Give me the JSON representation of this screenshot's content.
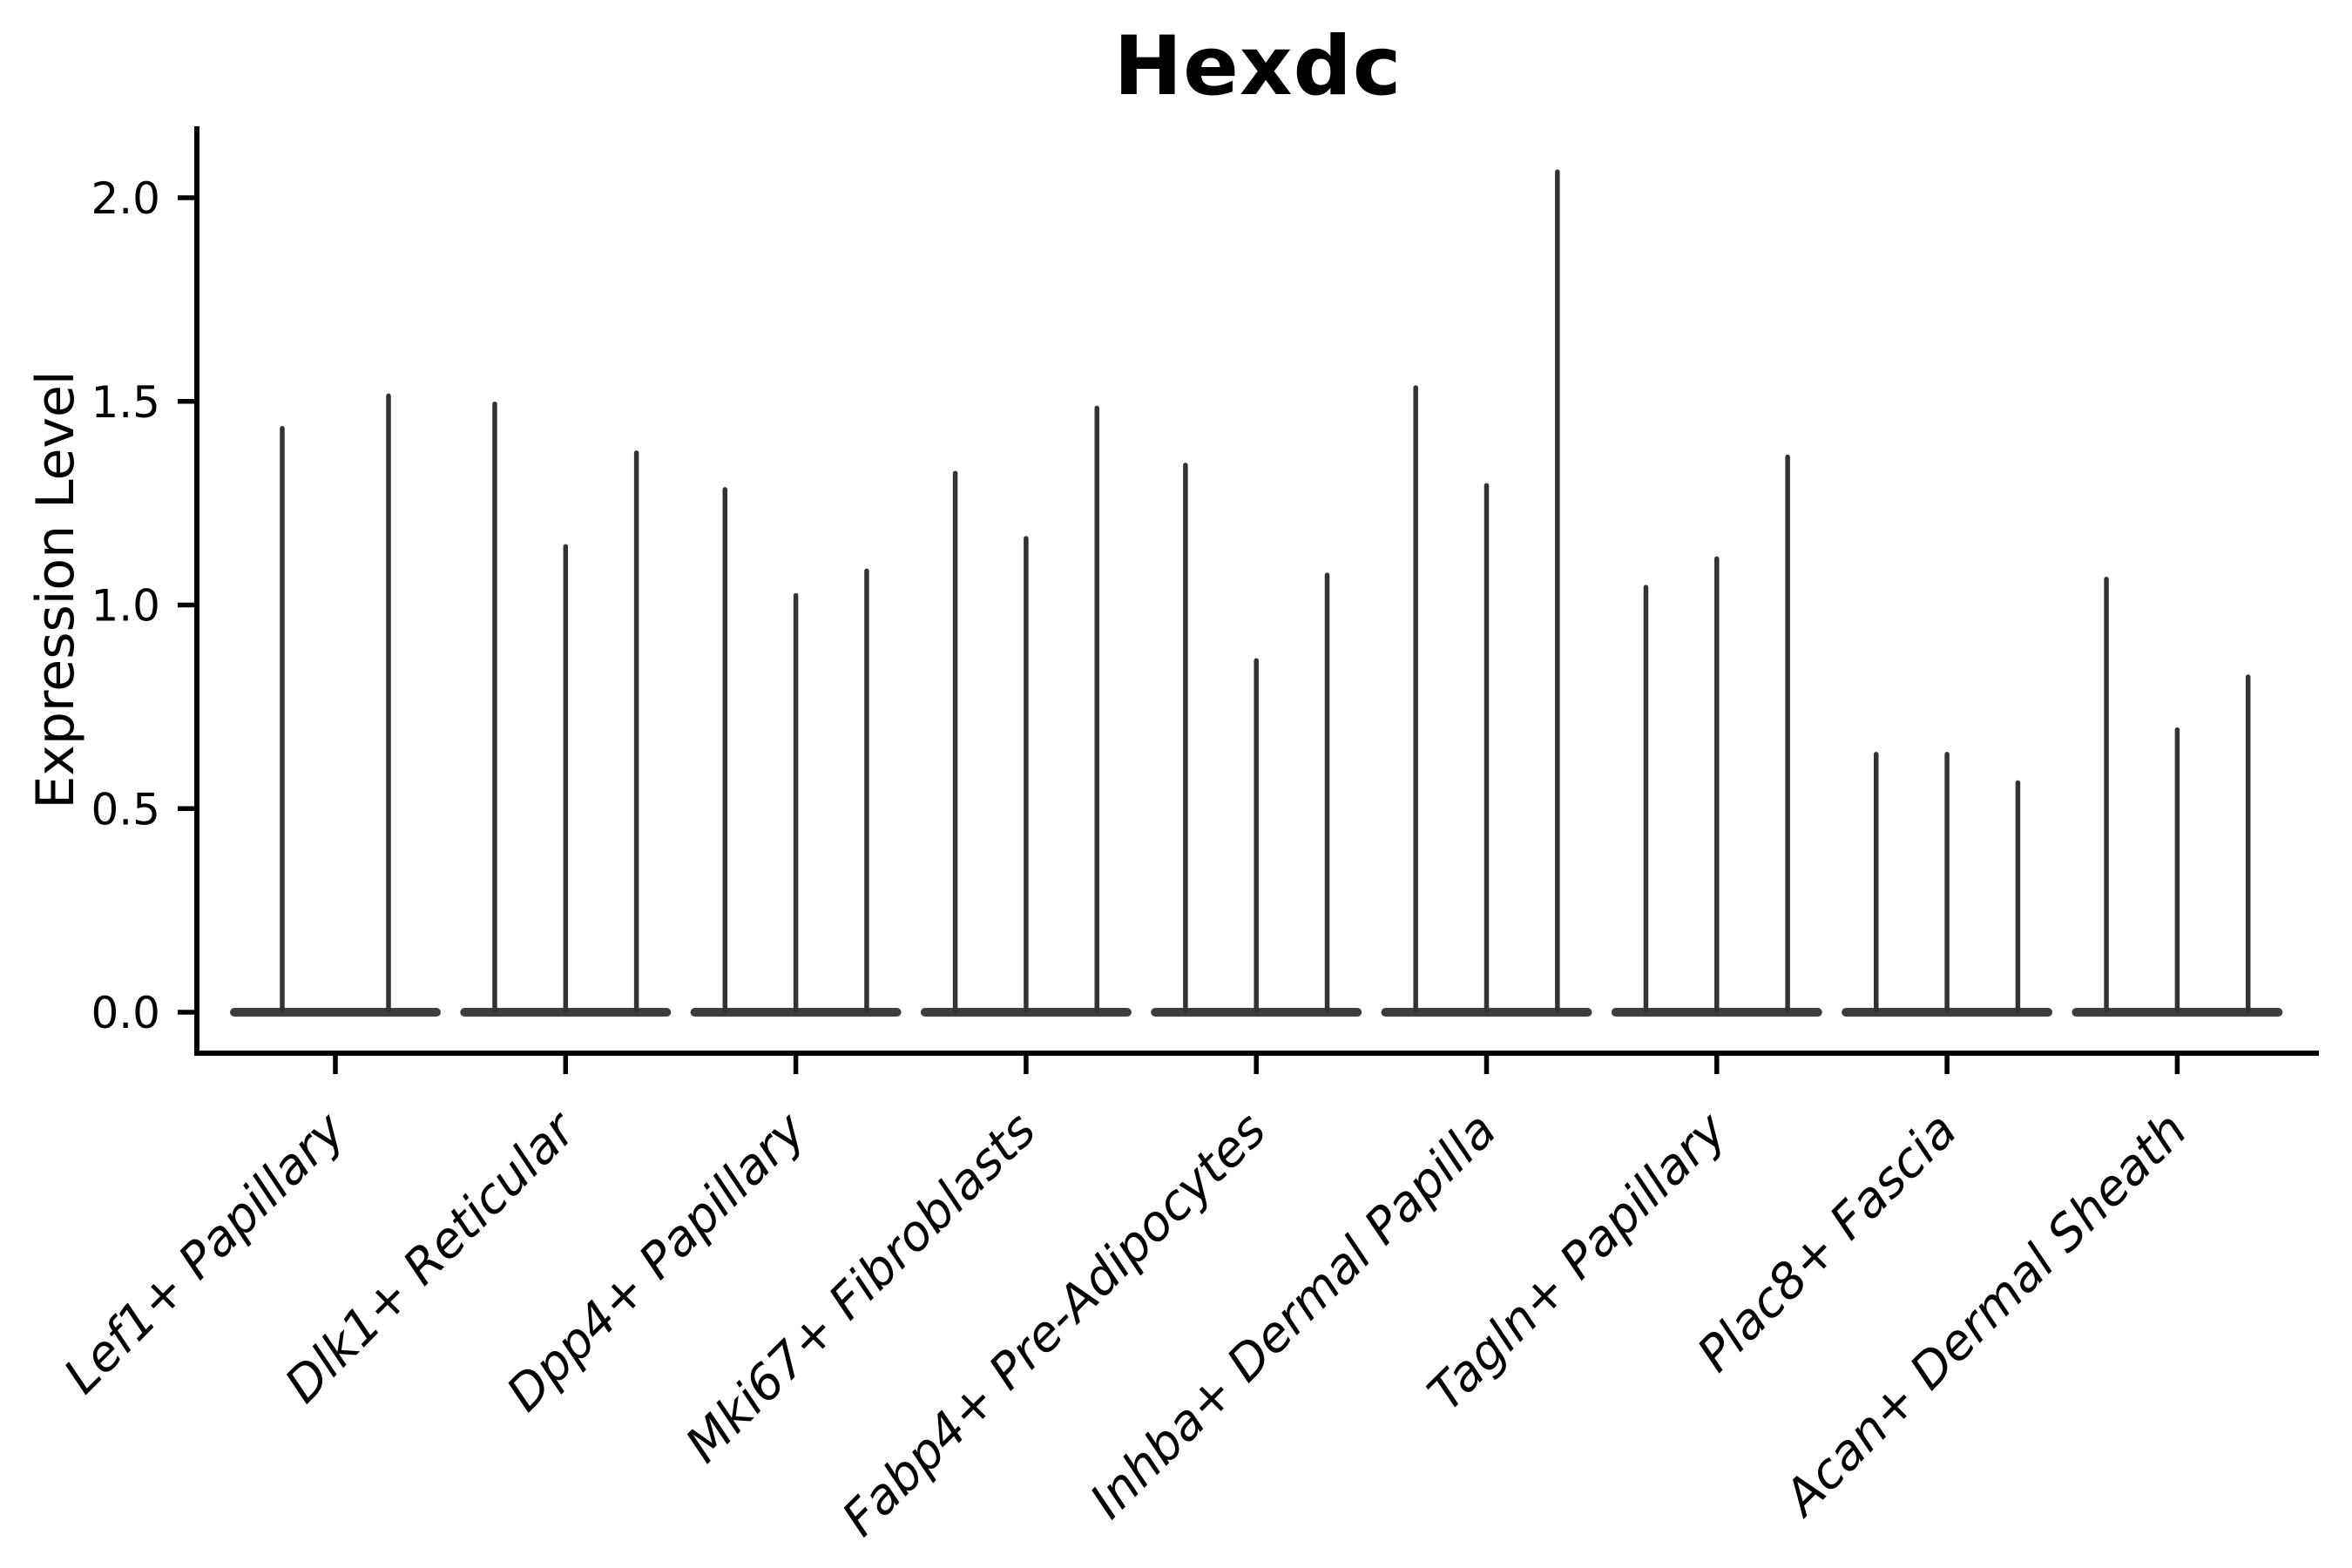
{
  "chart_data": {
    "type": "violin",
    "title": "Hexdc",
    "ylabel": "Expression Level",
    "xlabel": "",
    "ylim": [
      0,
      2.17
    ],
    "yticks": [
      0.0,
      0.5,
      1.0,
      1.5,
      2.0
    ],
    "ytick_labels": [
      "0.0",
      "0.5",
      "1.0",
      "1.5",
      "2.0"
    ],
    "grid": false,
    "legend": null,
    "description": "Violin plot of gene expression; each cell-type group shows narrow violins collapsed at 0 with thin spikes reaching the listed maximum expression values.",
    "categories": [
      "Lef1+ Papillary",
      "Dlk1+ Reticular",
      "Dpp4+ Papillary",
      "Mki67+ Fibroblasts",
      "Fabp4+ Pre-Adipocytes",
      "Inhba+ Dermal Papilla",
      "Tagln+ Papillary",
      "Plac8+ Fascia",
      "Acan+ Dermal Sheath"
    ],
    "groups": [
      {
        "category": "Lef1+ Papillary",
        "values": [
          1.44,
          1.52
        ]
      },
      {
        "category": "Dlk1+ Reticular",
        "values": [
          1.5,
          1.15,
          1.38
        ]
      },
      {
        "category": "Dpp4+ Papillary",
        "values": [
          1.29,
          1.03,
          1.09
        ]
      },
      {
        "category": "Mki67+ Fibroblasts",
        "values": [
          1.33,
          1.17,
          1.49
        ]
      },
      {
        "category": "Fabp4+ Pre-Adipocytes",
        "values": [
          1.35,
          0.87,
          1.08
        ]
      },
      {
        "category": "Inhba+ Dermal Papilla",
        "values": [
          1.54,
          1.3,
          2.07
        ]
      },
      {
        "category": "Tagln+ Papillary",
        "values": [
          1.05,
          1.12,
          1.37
        ]
      },
      {
        "category": "Plac8+ Fascia",
        "values": [
          0.64,
          0.64,
          0.57
        ]
      },
      {
        "category": "Acan+ Dermal Sheath",
        "values": [
          1.07,
          0.7,
          0.83
        ]
      }
    ],
    "colors": {
      "background": "#ffffff",
      "axis": "#000000",
      "text": "#000000",
      "violin_spike": "#333333",
      "violin_base": "#3d3d3d"
    }
  }
}
